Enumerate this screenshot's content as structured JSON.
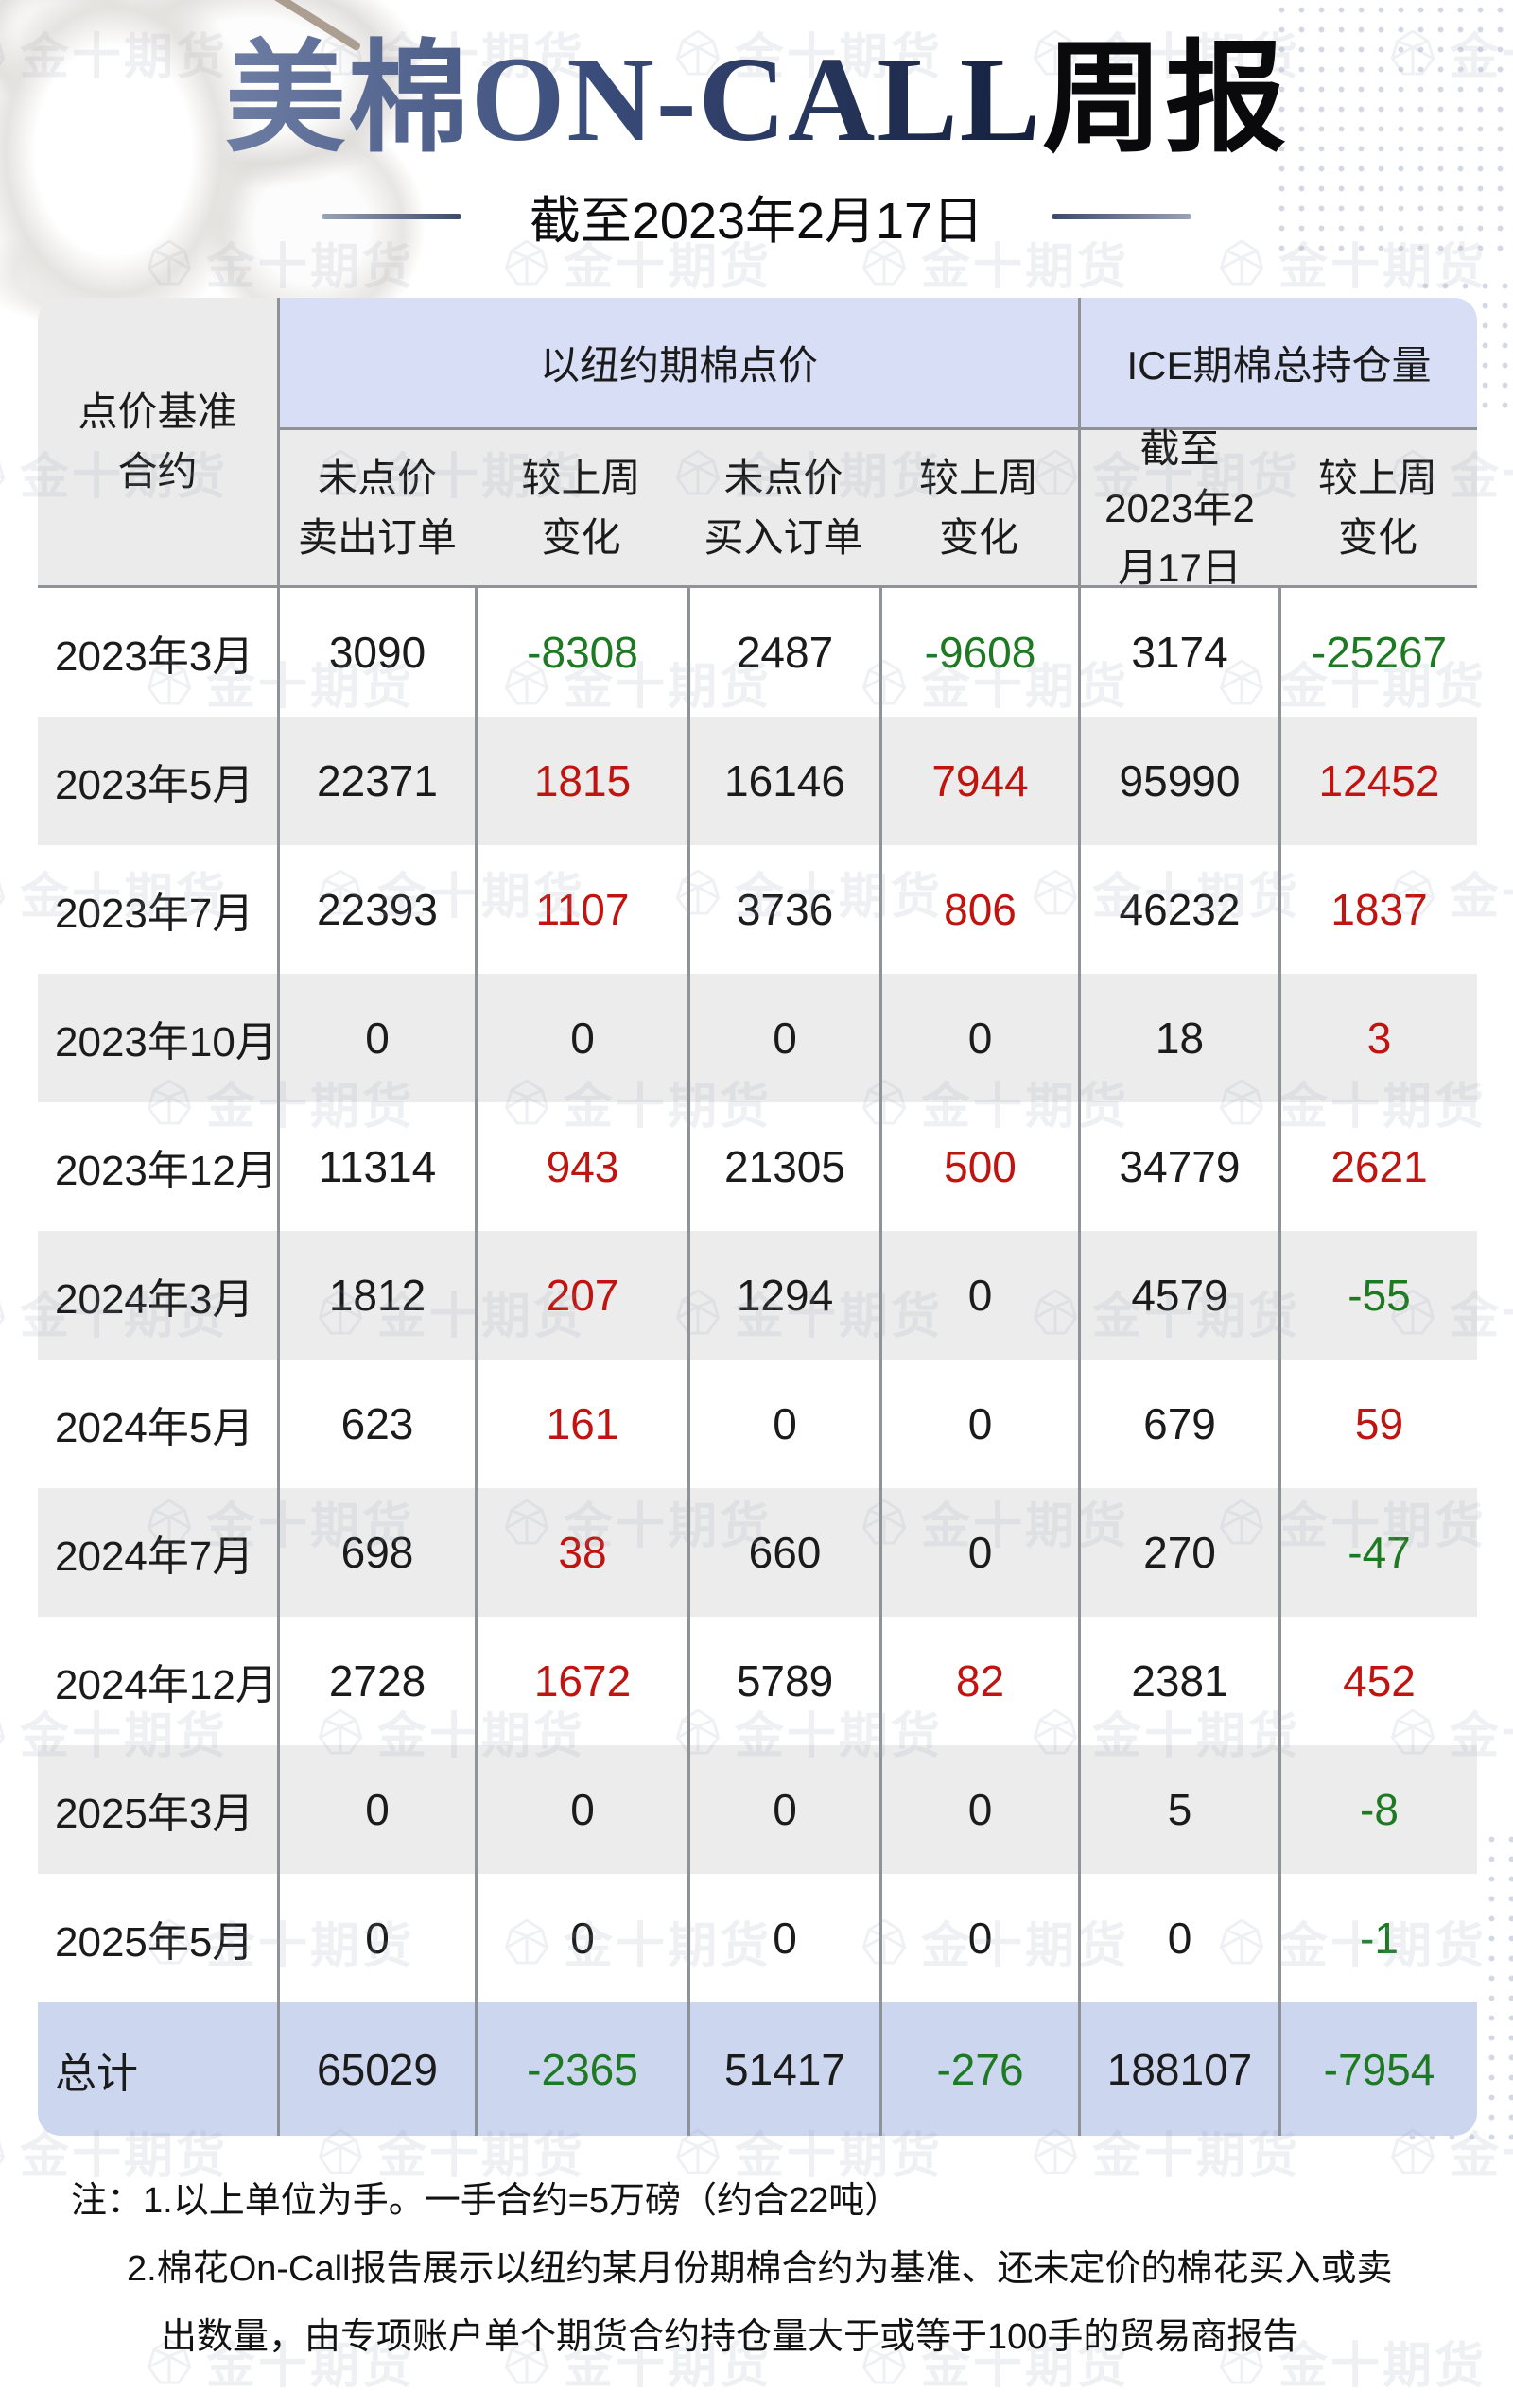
{
  "header": {
    "title_accent": "美棉ON-CALL",
    "title_rest": "周报",
    "subtitle": "截至2023年2月17日"
  },
  "table": {
    "corner_header_lines": [
      "点价基准",
      "合约"
    ],
    "group_headers": {
      "ny": "以纽约期棉点价",
      "ice": "ICE期棉总持仓量"
    },
    "column_headers": [
      [
        "未点价",
        "卖出订单"
      ],
      [
        "较上周",
        "变化"
      ],
      [
        "未点价",
        "买入订单"
      ],
      [
        "较上周",
        "变化"
      ],
      [
        "截至",
        "2023年2",
        "月17日"
      ],
      [
        "较上周",
        "变化"
      ]
    ],
    "change_column_indexes": [
      1,
      3,
      5
    ],
    "rows": [
      {
        "label": "2023年3月",
        "values": [
          3090,
          -8308,
          2487,
          -9608,
          3174,
          -25267
        ]
      },
      {
        "label": "2023年5月",
        "values": [
          22371,
          1815,
          16146,
          7944,
          95990,
          12452
        ]
      },
      {
        "label": "2023年7月",
        "values": [
          22393,
          1107,
          3736,
          806,
          46232,
          1837
        ]
      },
      {
        "label": "2023年10月",
        "values": [
          0,
          0,
          0,
          0,
          18,
          3
        ]
      },
      {
        "label": "2023年12月",
        "values": [
          11314,
          943,
          21305,
          500,
          34779,
          2621
        ]
      },
      {
        "label": "2024年3月",
        "values": [
          1812,
          207,
          1294,
          0,
          4579,
          -55
        ]
      },
      {
        "label": "2024年5月",
        "values": [
          623,
          161,
          0,
          0,
          679,
          59
        ]
      },
      {
        "label": "2024年7月",
        "values": [
          698,
          38,
          660,
          0,
          270,
          -47
        ]
      },
      {
        "label": "2024年12月",
        "values": [
          2728,
          1672,
          5789,
          82,
          2381,
          452
        ]
      },
      {
        "label": "2025年3月",
        "values": [
          0,
          0,
          0,
          0,
          5,
          -8
        ]
      },
      {
        "label": "2025年5月",
        "values": [
          0,
          0,
          0,
          0,
          0,
          -1
        ]
      }
    ],
    "total_row": {
      "label": "总计",
      "values": [
        65029,
        -2365,
        51417,
        -276,
        188107,
        -7954
      ]
    }
  },
  "notes": {
    "lines": [
      {
        "indent": 0,
        "text": "注：1.以上单位为手。一手合约=5万磅（约合22吨）"
      },
      {
        "indent": 1,
        "text": "2.棉花On-Call报告展示以纽约某月份期棉合约为基准、还未定价的棉花买入或卖"
      },
      {
        "indent": 2,
        "text": "出数量，由专项账户单个期货合约持仓量大于或等于100手的贸易商报告"
      }
    ]
  },
  "watermark": {
    "text": "金十期货"
  },
  "colors": {
    "increase_red": "#c01410",
    "decrease_green": "#1e7a22",
    "neutral_black": "#1b1b1b",
    "header_blue": "#d8def5",
    "header_gray": "#ebebeb",
    "row_gray": "#ececec",
    "total_blue": "#cdd6ef",
    "grid_line": "#8f9398",
    "title_navy": "#223158"
  },
  "chart_data": {
    "type": "table",
    "title": "美棉ON-CALL周报",
    "subtitle": "截至2023年2月17日",
    "column_groups": [
      "以纽约期棉点价",
      "ICE期棉总持仓量"
    ],
    "columns": [
      "点价基准合约",
      "未点价卖出订单",
      "较上周变化",
      "未点价买入订单",
      "较上周变化",
      "截至2023年2月17日",
      "较上周变化"
    ],
    "rows": [
      [
        "2023年3月",
        3090,
        -8308,
        2487,
        -9608,
        3174,
        -25267
      ],
      [
        "2023年5月",
        22371,
        1815,
        16146,
        7944,
        95990,
        12452
      ],
      [
        "2023年7月",
        22393,
        1107,
        3736,
        806,
        46232,
        1837
      ],
      [
        "2023年10月",
        0,
        0,
        0,
        0,
        18,
        3
      ],
      [
        "2023年12月",
        11314,
        943,
        21305,
        500,
        34779,
        2621
      ],
      [
        "2024年3月",
        1812,
        207,
        1294,
        0,
        4579,
        -55
      ],
      [
        "2024年5月",
        623,
        161,
        0,
        0,
        679,
        59
      ],
      [
        "2024年7月",
        698,
        38,
        660,
        0,
        270,
        -47
      ],
      [
        "2024年12月",
        2728,
        1672,
        5789,
        82,
        2381,
        452
      ],
      [
        "2025年3月",
        0,
        0,
        0,
        0,
        5,
        -8
      ],
      [
        "2025年5月",
        0,
        0,
        0,
        0,
        0,
        -1
      ],
      [
        "总计",
        65029,
        -2365,
        51417,
        -276,
        188107,
        -7954
      ]
    ]
  }
}
